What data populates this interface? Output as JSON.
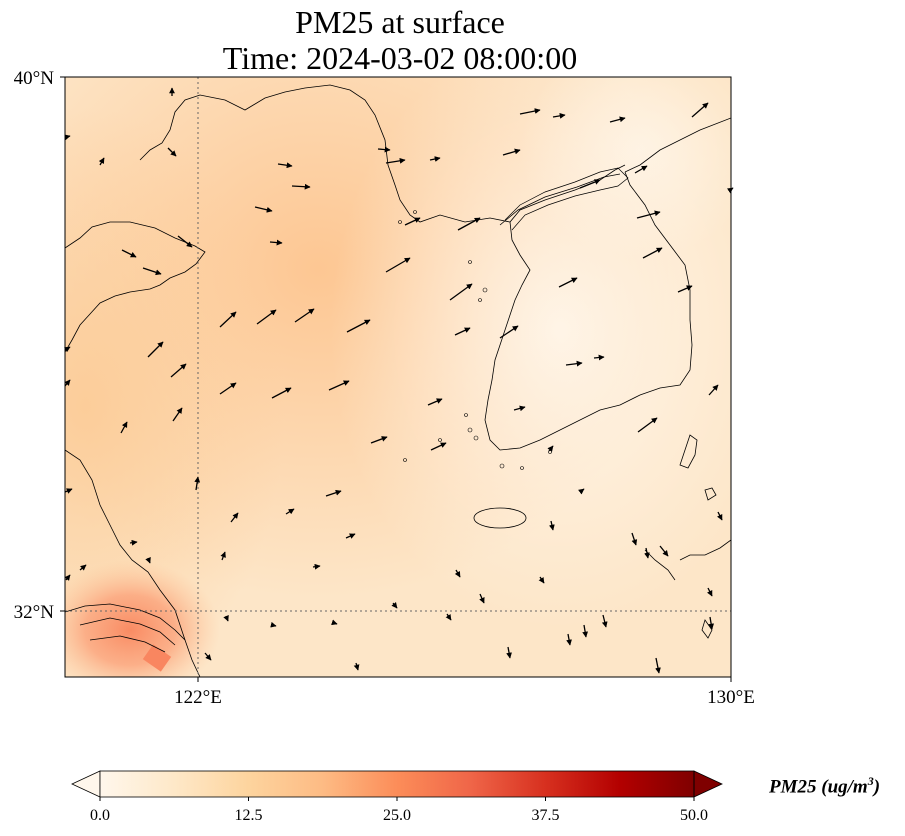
{
  "title": {
    "line1": "PM25 at surface",
    "line2": "Time: 2024-03-02 08:00:00"
  },
  "axes": {
    "lat_ticks": [
      "40°N",
      "32°N"
    ],
    "lon_ticks": [
      "122°E",
      "130°E"
    ],
    "lon_range": [
      120,
      130
    ],
    "lat_range": [
      31,
      40
    ],
    "gridlines": "dotted at 122°E and 32°N"
  },
  "colorbar": {
    "ticks": [
      "0.0",
      "12.5",
      "25.0",
      "37.5",
      "50.0"
    ],
    "range": [
      0,
      50
    ],
    "colormap": "OrRd",
    "extend": "both",
    "colors": [
      "#fff7ec",
      "#fee8c8",
      "#fdd49e",
      "#fdbb84",
      "#fc8d59",
      "#ef6548",
      "#d7301f",
      "#b30000",
      "#7f0000"
    ],
    "unit_label": "PM25 (ug/m",
    "unit_sup": "3",
    "unit_close": ")"
  },
  "field": {
    "variable": "PM25",
    "approx_values": "mostly 5–18 ug/m3; highest ~20–25 near Shanghai (31.5°N, 121.5°E)"
  },
  "wind_vectors": "black arrows; westerly/south-westerly over the Yellow Sea, northerly near 31–32°N"
}
